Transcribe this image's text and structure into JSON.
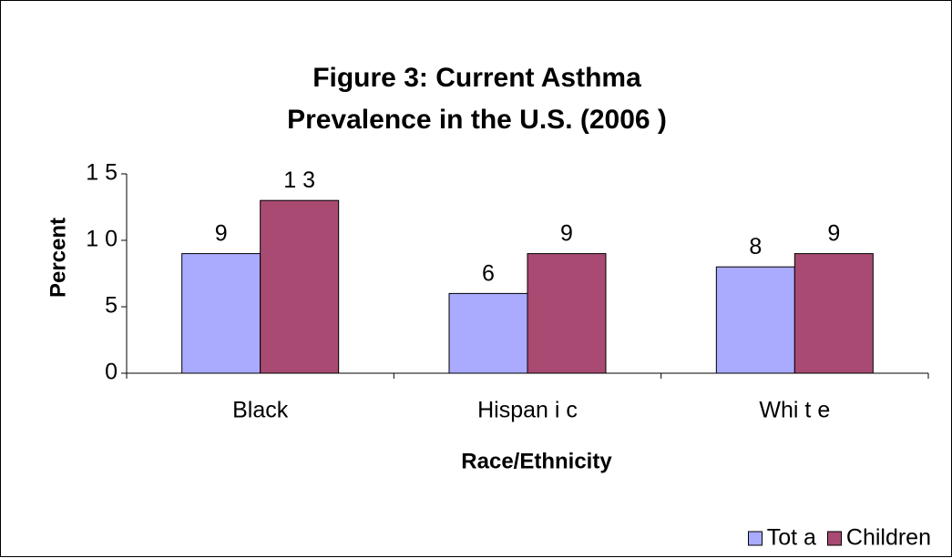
{
  "colors": {
    "total": "#aaaaff",
    "children": "#a84a72"
  },
  "chart_data": {
    "type": "bar",
    "title": [
      "Figure 3: Current Asthma",
      "Prevalence in the U.S. (2006 )"
    ],
    "xlabel": "Race/Ethnicity",
    "ylabel": "Percent",
    "categories": [
      "Black",
      "Hispan i c",
      "Whi t e"
    ],
    "series": [
      {
        "name": "Tot a",
        "values": [
          9,
          6,
          8
        ]
      },
      {
        "name": "Children",
        "values": [
          13,
          9,
          9
        ]
      }
    ],
    "data_labels": [
      [
        "9",
        "6",
        "8"
      ],
      [
        "1 3",
        "9",
        "9"
      ]
    ],
    "yticks": [
      0,
      5,
      10,
      15
    ],
    "ytick_labels": [
      "0",
      "5",
      "1 0",
      "1 5"
    ],
    "ylim": [
      0,
      15
    ],
    "grid": false,
    "legend": "bottom-right"
  }
}
